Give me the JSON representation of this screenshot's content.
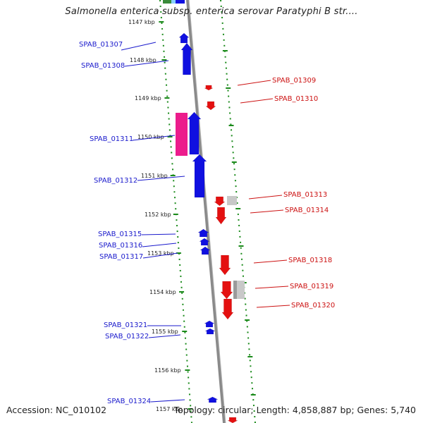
{
  "title": "Salmonella enterica subsp. enterica serovar Paratyphi B str....",
  "footer": {
    "accession": "Accession: NC_010102",
    "summary": "Topology: circular; Length: 4,858,887 bp; Genes: 5,740"
  },
  "colors": {
    "forward_gene": "#1010e0",
    "reverse_gene": "#e41010",
    "pseudo_gene": "#ec1c8c",
    "other_feature": "#c8c8c8",
    "tick": "#1a8a1a",
    "backbone": "#8a8a8a",
    "forward_label": "#1a1acc",
    "reverse_label": "#cc1111"
  },
  "scale_labels": [
    "1147 kbp",
    "1148 kbp",
    "1149 kbp",
    "1150 kbp",
    "1151 kbp",
    "1152 kbp",
    "1153 kbp",
    "1154 kbp",
    "1155 kbp",
    "1156 kbp",
    "1157 kbp"
  ],
  "forward_gene_labels": [
    "SPAB_01307",
    "SPAB_01308",
    "SPAB_01311",
    "SPAB_01312",
    "SPAB_01315",
    "SPAB_01316",
    "SPAB_01317",
    "SPAB_01321",
    "SPAB_01322",
    "SPAB_01324"
  ],
  "reverse_gene_labels": [
    "SPAB_01309",
    "SPAB_01310",
    "SPAB_01313",
    "SPAB_01314",
    "SPAB_01318",
    "SPAB_01319",
    "SPAB_01320"
  ]
}
